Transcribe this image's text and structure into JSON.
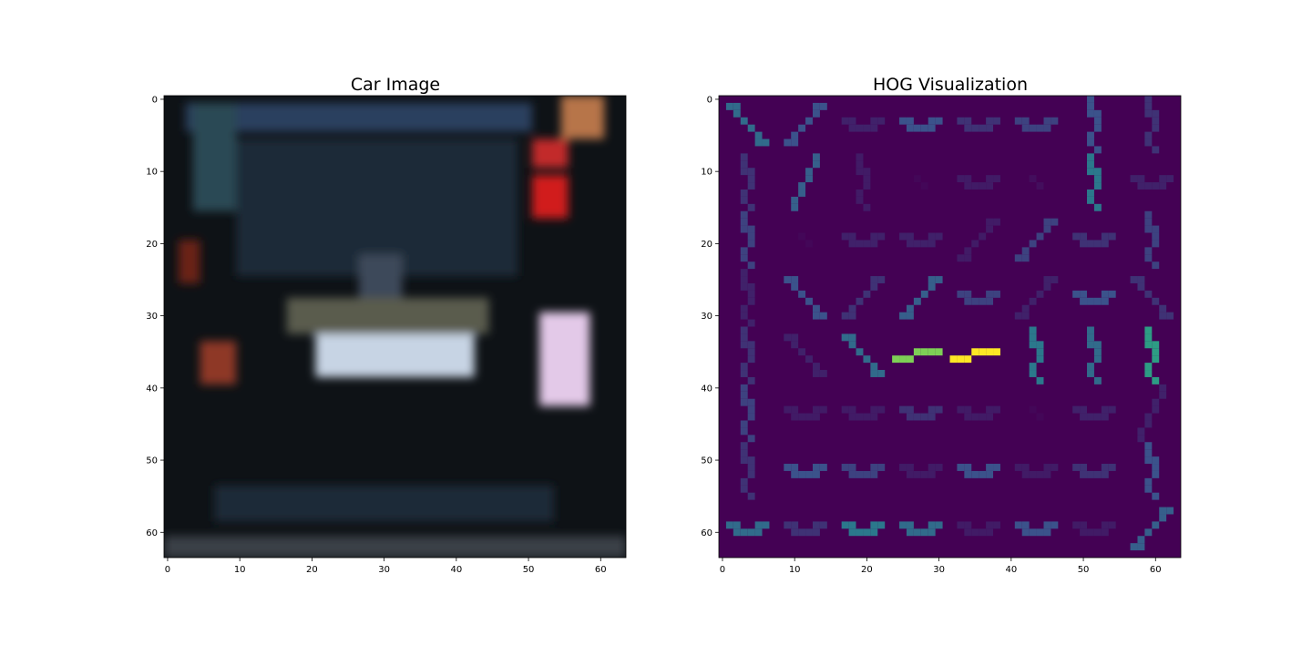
{
  "chart_data": [
    {
      "type": "heatmap",
      "title": "Car Image",
      "colormap": "rgb",
      "image_size": [
        64,
        64
      ],
      "xlim": [
        -0.5,
        63.5
      ],
      "ylim": [
        63.5,
        -0.5
      ],
      "xticks": [
        0,
        10,
        20,
        30,
        40,
        50,
        60
      ],
      "yticks": [
        0,
        10,
        20,
        30,
        40,
        50,
        60
      ],
      "background_color": "#0e1216",
      "regions": [
        {
          "label": "upper frame band",
          "x": [
            3,
            50
          ],
          "y": [
            1,
            4
          ],
          "color": "#2b3f5e"
        },
        {
          "label": "left pillar",
          "x": [
            4,
            9
          ],
          "y": [
            1,
            15
          ],
          "color": "#2c4a55"
        },
        {
          "label": "rear window",
          "x": [
            10,
            48
          ],
          "y": [
            6,
            24
          ],
          "color": "#1c2a38"
        },
        {
          "label": "top-right light",
          "x": [
            55,
            60
          ],
          "y": [
            0,
            5
          ],
          "color": "#b7744a"
        },
        {
          "label": "right tail light upper",
          "x": [
            51,
            55
          ],
          "y": [
            6,
            9
          ],
          "color": "#c22a2a"
        },
        {
          "label": "right tail light lower",
          "x": [
            51,
            55
          ],
          "y": [
            11,
            16
          ],
          "color": "#d11d1d"
        },
        {
          "label": "left marker",
          "x": [
            2,
            4
          ],
          "y": [
            20,
            25
          ],
          "color": "#6a2417"
        },
        {
          "label": "roof highlight",
          "x": [
            27,
            32
          ],
          "y": [
            22,
            28
          ],
          "color": "#3d4a5a"
        },
        {
          "label": "trunk band",
          "x": [
            17,
            44
          ],
          "y": [
            28,
            32
          ],
          "color": "#5a5b4d"
        },
        {
          "label": "license plate",
          "x": [
            21,
            42
          ],
          "y": [
            33,
            38
          ],
          "color": "#c7d4e4"
        },
        {
          "label": "left tail light",
          "x": [
            5,
            9
          ],
          "y": [
            34,
            39
          ],
          "color": "#8e3927"
        },
        {
          "label": "right tail light",
          "x": [
            52,
            58
          ],
          "y": [
            30,
            42
          ],
          "color": "#e3c9e8"
        },
        {
          "label": "bumper band",
          "x": [
            7,
            53
          ],
          "y": [
            54,
            58
          ],
          "color": "#1f2938"
        },
        {
          "label": "bottom strip",
          "x": [
            0,
            63
          ],
          "y": [
            61,
            63
          ],
          "color": "#3a4046"
        }
      ]
    },
    {
      "type": "heatmap",
      "title": "HOG Visualization",
      "colormap": "viridis",
      "image_size": [
        64,
        64
      ],
      "xlim": [
        -0.5,
        63.5
      ],
      "ylim": [
        63.5,
        -0.5
      ],
      "xticks": [
        0,
        10,
        20,
        30,
        40,
        50,
        60
      ],
      "yticks": [
        0,
        10,
        20,
        30,
        40,
        50,
        60
      ],
      "cell_size": 8,
      "background_color": "#440154",
      "cells": [
        [
          "diag",
          "diag2",
          "h",
          "h",
          "h",
          "h",
          "v",
          "v"
        ],
        [
          "v",
          "vdiag",
          "v",
          "none",
          "h",
          "none",
          "v",
          "h"
        ],
        [
          "v",
          "none",
          "h",
          "h",
          "diag2",
          "diag2",
          "h",
          "v"
        ],
        [
          "v",
          "diag",
          "diag2",
          "diag2",
          "h",
          "diag2",
          "h",
          "diag"
        ],
        [
          "v",
          "diag",
          "diag",
          "bright-h",
          "bright-h",
          "v",
          "v",
          "v"
        ],
        [
          "v",
          "h",
          "h",
          "h",
          "h",
          "none",
          "h",
          "vdiag"
        ],
        [
          "v",
          "h",
          "h",
          "h",
          "h",
          "h",
          "h",
          "v"
        ],
        [
          "h",
          "h",
          "h",
          "h",
          "h",
          "h",
          "h",
          "diag2"
        ]
      ],
      "intensities": [
        [
          0.35,
          0.35,
          0.3,
          0.3,
          0.3,
          0.2,
          0.35,
          0.35
        ],
        [
          0.3,
          0.3,
          0.1,
          0.05,
          0.1,
          0.1,
          0.4,
          0.2
        ],
        [
          0.25,
          0.05,
          0.1,
          0.2,
          0.2,
          0.25,
          0.3,
          0.2
        ],
        [
          0.3,
          0.3,
          0.3,
          0.3,
          0.3,
          0.3,
          0.3,
          0.3
        ],
        [
          0.25,
          0.3,
          0.4,
          0.95,
          1.0,
          0.5,
          0.55,
          0.6
        ],
        [
          0.2,
          0.15,
          0.15,
          0.2,
          0.2,
          0.05,
          0.2,
          0.3
        ],
        [
          0.3,
          0.25,
          0.3,
          0.25,
          0.3,
          0.2,
          0.15,
          0.35
        ],
        [
          0.4,
          0.3,
          0.4,
          0.45,
          0.25,
          0.3,
          0.15,
          0.3
        ]
      ]
    }
  ]
}
